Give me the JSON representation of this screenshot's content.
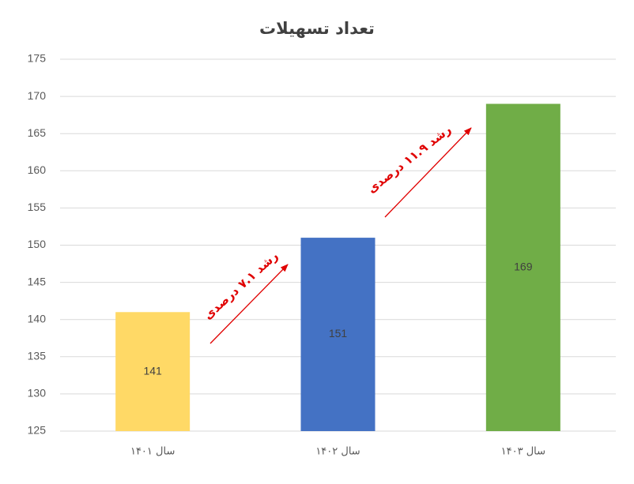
{
  "chart_data": {
    "type": "bar",
    "title": "تعداد تسهیلات",
    "categories": [
      "سال ۱۴۰۱",
      "سال ۱۴۰۲",
      "سال ۱۴۰۳"
    ],
    "values": [
      141,
      151,
      169
    ],
    "colors": [
      "#ffd966",
      "#4472c4",
      "#70ad47"
    ],
    "ylim": [
      125,
      175
    ],
    "yticks": [
      125,
      130,
      135,
      140,
      145,
      150,
      155,
      160,
      165,
      170,
      175
    ],
    "grid": true,
    "annotations": [
      "رشد ۷.۱ درصدی",
      "رشد ۱۱.۹ درصدی"
    ]
  }
}
